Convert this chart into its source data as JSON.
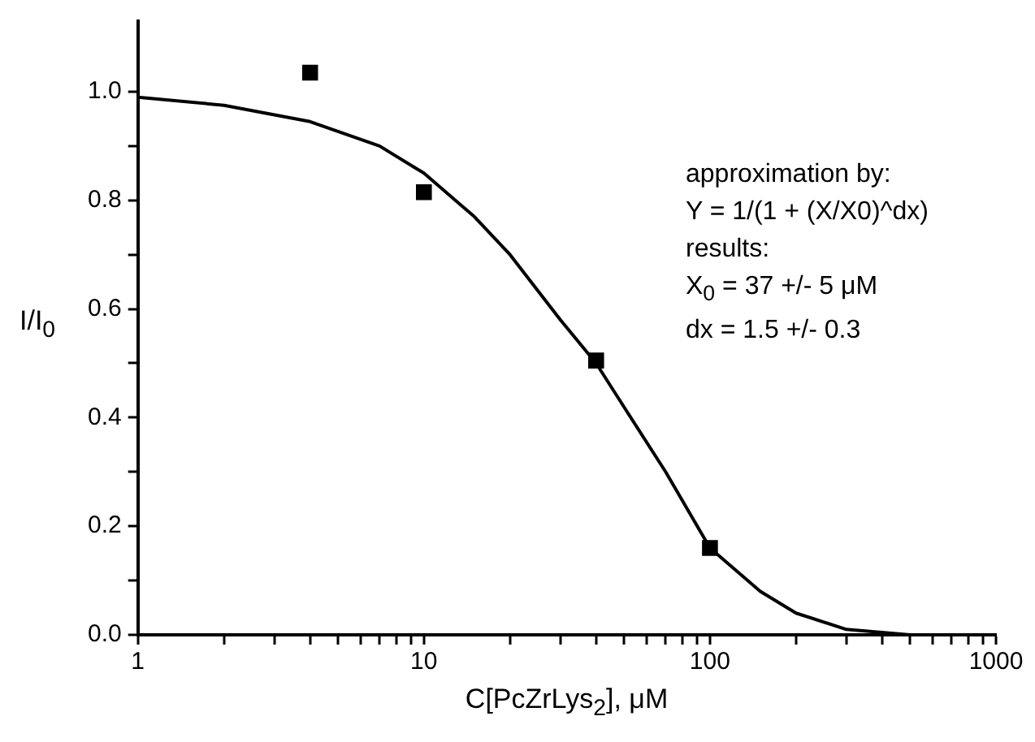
{
  "chart_data": {
    "type": "scatter",
    "xlabel": "C[PcZrLys$_{2}$], μM",
    "ylabel": "I/I$_{0}$",
    "log": "x",
    "xlim": [
      1,
      1000
    ],
    "ylim": [
      0,
      1.13
    ],
    "xticks": [
      1,
      {
        "value": 2,
        "label": null
      },
      {
        "value": 3,
        "label": null
      },
      {
        "value": 4,
        "label": null
      },
      {
        "value": 5,
        "label": null
      },
      {
        "value": 6,
        "label": null
      },
      {
        "value": 7,
        "label": null
      },
      {
        "value": 8,
        "label": null
      },
      {
        "value": 9,
        "label": null
      },
      10,
      {
        "value": 20,
        "label": null
      },
      {
        "value": 30,
        "label": null
      },
      {
        "value": 40,
        "label": null
      },
      {
        "value": 50,
        "label": null
      },
      {
        "value": 60,
        "label": null
      },
      {
        "value": 70,
        "label": null
      },
      {
        "value": 80,
        "label": null
      },
      {
        "value": 90,
        "label": null
      },
      100,
      {
        "value": 200,
        "label": null
      },
      {
        "value": 300,
        "label": null
      },
      {
        "value": 400,
        "label": null
      },
      {
        "value": 500,
        "label": null
      },
      {
        "value": 600,
        "label": null
      },
      {
        "value": 700,
        "label": null
      },
      {
        "value": 800,
        "label": null
      },
      {
        "value": 900,
        "label": null
      },
      1000
    ],
    "yticks": [
      {
        "value": 0,
        "label": "0.0"
      },
      {
        "value": 0.1,
        "label": null
      },
      {
        "value": 0.2,
        "label": "0.2"
      },
      {
        "value": 0.3,
        "label": null
      },
      {
        "value": 0.4,
        "label": "0.4"
      },
      {
        "value": 0.5,
        "label": null
      },
      {
        "value": 0.6,
        "label": "0.6"
      },
      {
        "value": 0.7,
        "label": null
      },
      {
        "value": 0.8,
        "label": "0.8"
      },
      {
        "value": 0.9,
        "label": null
      },
      {
        "value": 1.0,
        "label": "1.0"
      }
    ],
    "grid": false,
    "legend": false,
    "series": [
      {
        "type": "scatter",
        "marker": "square",
        "color": "#000000",
        "x": [
          4,
          10,
          40,
          100
        ],
        "values": [
          1.035,
          0.815,
          0.505,
          0.16
        ]
      },
      {
        "type": "line",
        "marker": "none",
        "line_style": "solid",
        "color": "#000000",
        "x": [
          1,
          2,
          4,
          7,
          10,
          15,
          20,
          30,
          40,
          50,
          70,
          100,
          150,
          200,
          300,
          500,
          1000
        ],
        "values": [
          0.99,
          0.975,
          0.945,
          0.9,
          0.85,
          0.77,
          0.7,
          0.58,
          0.5,
          0.42,
          0.3,
          0.16,
          0.08,
          0.04,
          0.01,
          0.0,
          0.0
        ]
      }
    ],
    "annotations": [
      "approximation by:",
      "Y = 1/(1 + (X/X0)^dx)",
      "results:",
      "X$_{0}$ = 37 +/- 5 μM",
      "dx = 1.5 +/- 0.3"
    ]
  }
}
